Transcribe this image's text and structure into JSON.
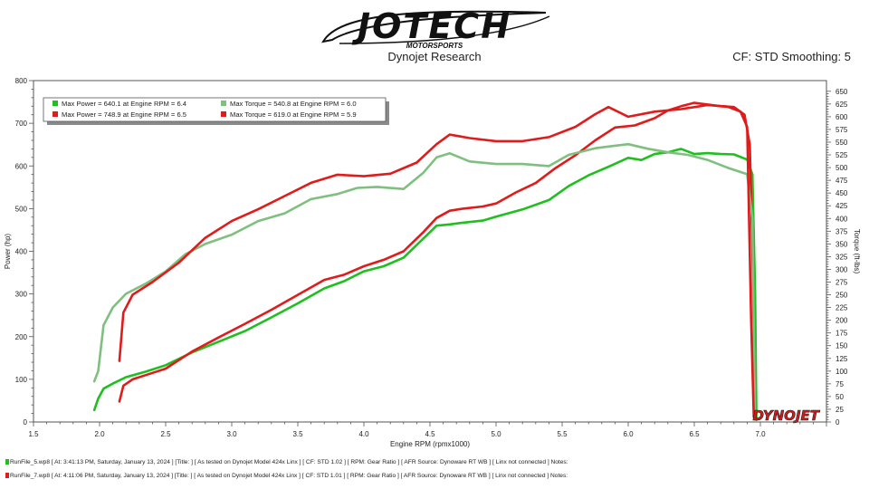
{
  "logo": {
    "brand": "JOTECH",
    "sub": "MOTORSPORTS"
  },
  "header": {
    "center": "Dynojet Research",
    "right": "CF: STD Smoothing: 5"
  },
  "dynojet_mark": "DYNOJET",
  "legend": [
    {
      "text": "Max Power = 640.1 at Engine RPM = 6.4",
      "color": "#1fbf1f"
    },
    {
      "text": "Max Torque = 540.8 at Engine RPM = 6.0",
      "color": "#7fbf7f"
    },
    {
      "text": "Max Power = 748.9 at Engine RPM = 6.5",
      "color": "#e01b1b"
    },
    {
      "text": "Max Torque = 619.0 at Engine RPM = 5.9",
      "color": "#e01b1b"
    }
  ],
  "footer": [
    {
      "text": "RunFile_5.wp8  [ At: 3:41:13 PM, Saturday, January 13, 2024 ]  [Title: ]   [ As tested on Dynojet Model 424x Linx ]  [ CF: STD 1.02 ]  [ RPM: Gear Ratio ]  [ AFR Source: Dynoware RT WB ]  [ Linx not connected ]  Notes:",
      "color": "#1fbf1f"
    },
    {
      "text": "RunFile_7.wp8  [ At: 4:11:06 PM, Saturday, January 13, 2024 ]  [Title: ]   [ As tested on Dynojet Model 424x Linx ]  [ CF: STD 1.01 ]  [ RPM: Gear Ratio ]  [ AFR Source: Dynoware RT WB ]  [ Linx not connected ]  Notes:",
      "color": "#e01b1b"
    }
  ],
  "chart_data": {
    "type": "line",
    "xlabel": "Engine RPM (rpmx1000)",
    "ylabel": "Power (hp)",
    "y2label": "Torque (ft-lbs)",
    "xlim": [
      1.5,
      7.5
    ],
    "ylim": [
      0,
      800
    ],
    "y2lim": [
      0,
      671
    ],
    "x_ticks": [
      1.5,
      2.0,
      2.5,
      3.0,
      3.5,
      4.0,
      4.5,
      5.0,
      5.5,
      6.0,
      6.5,
      7.0
    ],
    "x_tick_labels": [
      "1.5",
      "2.0",
      "2.5",
      "3.0",
      "3.5",
      "4.0",
      "4.5",
      "5.0",
      "5.5",
      "6.0",
      "6.5",
      "7.0"
    ],
    "y_ticks": [
      0,
      100,
      200,
      300,
      400,
      500,
      600,
      700,
      800
    ],
    "y2_ticks": [
      0,
      25,
      50,
      75,
      100,
      125,
      150,
      175,
      200,
      225,
      250,
      275,
      300,
      325,
      350,
      375,
      400,
      425,
      450,
      475,
      500,
      525,
      550,
      575,
      600,
      625,
      650
    ],
    "grid": false,
    "legend_position": "top-left",
    "series": [
      {
        "axis": "left",
        "color": "#1fbf1f",
        "x": [
          1.96,
          1.99,
          2.03,
          2.1,
          2.2,
          2.35,
          2.5,
          2.7,
          2.9,
          3.1,
          3.3,
          3.5,
          3.7,
          3.85,
          4.0,
          4.15,
          4.3,
          4.45,
          4.55,
          4.65,
          4.75,
          4.9,
          5.0,
          5.2,
          5.4,
          5.55,
          5.7,
          5.85,
          6.0,
          6.1,
          6.2,
          6.3,
          6.4,
          6.5,
          6.6,
          6.7,
          6.8,
          6.9,
          6.94,
          6.96,
          6.97
        ],
        "y": [
          28,
          55,
          78,
          90,
          105,
          118,
          133,
          163,
          188,
          213,
          245,
          278,
          313,
          330,
          353,
          365,
          385,
          430,
          460,
          463,
          467,
          472,
          481,
          498,
          520,
          553,
          578,
          598,
          619,
          614,
          628,
          632,
          640,
          628,
          630,
          628,
          627,
          615,
          580,
          300,
          5
        ]
      },
      {
        "axis": "left",
        "color": "#e01b1b",
        "x": [
          2.15,
          2.18,
          2.25,
          2.35,
          2.5,
          2.7,
          2.9,
          3.1,
          3.3,
          3.5,
          3.7,
          3.85,
          4.0,
          4.15,
          4.3,
          4.45,
          4.55,
          4.65,
          4.75,
          4.9,
          5.0,
          5.15,
          5.3,
          5.45,
          5.6,
          5.75,
          5.9,
          6.05,
          6.2,
          6.3,
          6.4,
          6.5,
          6.6,
          6.7,
          6.8,
          6.88,
          6.92,
          6.94,
          6.96
        ],
        "y": [
          48,
          85,
          100,
          110,
          125,
          165,
          198,
          230,
          263,
          298,
          333,
          345,
          365,
          380,
          400,
          445,
          478,
          495,
          500,
          505,
          512,
          538,
          560,
          595,
          625,
          660,
          690,
          695,
          712,
          730,
          740,
          748,
          744,
          740,
          738,
          720,
          650,
          400,
          10
        ]
      },
      {
        "axis": "right",
        "color": "#7fbf7f",
        "x": [
          1.96,
          1.99,
          2.03,
          2.1,
          2.2,
          2.35,
          2.5,
          2.65,
          2.8,
          3.0,
          3.2,
          3.4,
          3.6,
          3.8,
          3.95,
          4.1,
          4.3,
          4.45,
          4.55,
          4.65,
          4.8,
          5.0,
          5.2,
          5.4,
          5.55,
          5.75,
          5.9,
          6.0,
          6.15,
          6.3,
          6.45,
          6.6,
          6.75,
          6.9,
          6.94,
          6.96
        ],
        "y": [
          80,
          100,
          190,
          225,
          252,
          272,
          296,
          330,
          350,
          368,
          395,
          410,
          438,
          448,
          460,
          462,
          458,
          490,
          520,
          528,
          512,
          507,
          507,
          503,
          525,
          538,
          543,
          546,
          537,
          530,
          525,
          515,
          500,
          487,
          400,
          5
        ]
      },
      {
        "axis": "right",
        "color": "#e01b1b",
        "x": [
          2.15,
          2.18,
          2.25,
          2.4,
          2.6,
          2.8,
          3.0,
          3.2,
          3.4,
          3.6,
          3.8,
          4.0,
          4.2,
          4.4,
          4.55,
          4.65,
          4.8,
          5.0,
          5.2,
          5.4,
          5.6,
          5.75,
          5.85,
          6.0,
          6.2,
          6.4,
          6.6,
          6.75,
          6.85,
          6.9,
          6.93,
          6.95
        ],
        "y": [
          120,
          215,
          250,
          275,
          313,
          362,
          395,
          418,
          444,
          470,
          486,
          483,
          488,
          510,
          546,
          565,
          558,
          552,
          552,
          560,
          580,
          605,
          619,
          600,
          610,
          615,
          623,
          620,
          610,
          580,
          200,
          10
        ]
      }
    ]
  }
}
